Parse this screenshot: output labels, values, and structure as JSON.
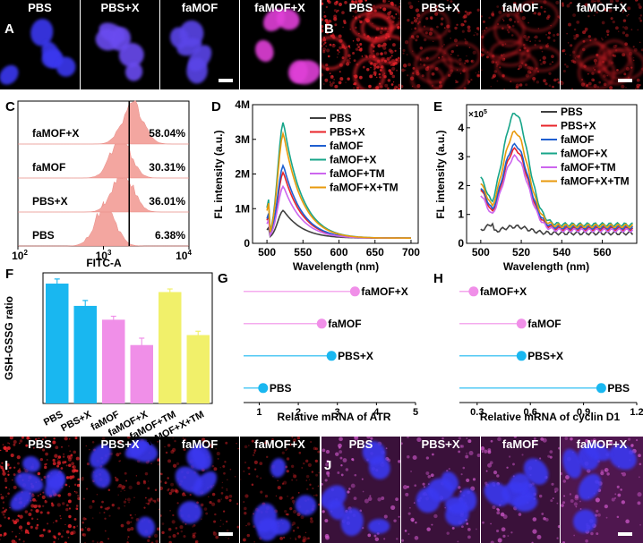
{
  "colors": {
    "nucleus": "#3b38f0",
    "red_stain": "#e8242a",
    "magenta": "#e14fd6",
    "cyan": "#19a5d8",
    "pink": "#f08fe8",
    "yellow": "#f1f06a",
    "hist_fill": "#f3a6a0"
  },
  "panels": {
    "A": {
      "letter": "A",
      "labels": [
        "PBS",
        "PBS+X",
        "faMOF",
        "faMOF+X"
      ]
    },
    "B": {
      "letter": "B",
      "labels": [
        "PBS",
        "PBS+X",
        "faMOF",
        "faMOF+X"
      ]
    },
    "C": {
      "letter": "C"
    },
    "D": {
      "letter": "D"
    },
    "E": {
      "letter": "E"
    },
    "F": {
      "letter": "F"
    },
    "G": {
      "letter": "G"
    },
    "H": {
      "letter": "H"
    },
    "I": {
      "letter": "I",
      "labels": [
        "PBS",
        "PBS+X",
        "faMOF",
        "faMOF+X"
      ]
    },
    "J": {
      "letter": "J",
      "labels": [
        "PBS",
        "PBS+X",
        "faMOF",
        "faMOF+X"
      ]
    }
  },
  "chart_data": [
    {
      "id": "C",
      "type": "histogram",
      "xlabel": "FITC-A",
      "x_scale": "log",
      "xlim": [
        100,
        10000
      ],
      "xticks": [
        "10",
        "10",
        "10"
      ],
      "xtick_exps": [
        "2",
        "3",
        "4"
      ],
      "gate": 2000,
      "series": [
        {
          "name": "faMOF+X",
          "percent": "58.04%",
          "peak": 2200
        },
        {
          "name": "faMOF",
          "percent": "30.31%",
          "peak": 1600
        },
        {
          "name": "PBS+X",
          "percent": "36.01%",
          "peak": 1700
        },
        {
          "name": "PBS",
          "percent": "6.38%",
          "peak": 1050
        }
      ]
    },
    {
      "id": "D",
      "type": "line",
      "xlabel": "Wavelength (nm)",
      "ylabel": "FL intensity (a.u.)",
      "xlim": [
        480,
        710
      ],
      "ylim": [
        0,
        4000000
      ],
      "xticks": [
        500,
        550,
        600,
        650,
        700
      ],
      "yticks": [
        0,
        1000000,
        2000000,
        3000000,
        4000000
      ],
      "ytick_labels": [
        "0",
        "1M",
        "2M",
        "3M",
        "4M"
      ],
      "peak_x": 523,
      "series": [
        {
          "name": "PBS",
          "color": "#404040",
          "peak": 950000
        },
        {
          "name": "PBS+X",
          "color": "#e8242a",
          "peak": 2050000
        },
        {
          "name": "faMOF",
          "color": "#1f5fd0",
          "peak": 2250000
        },
        {
          "name": "faMOF+X",
          "color": "#17a589",
          "peak": 3500000
        },
        {
          "name": "faMOF+TM",
          "color": "#cc66ee",
          "peak": 1650000
        },
        {
          "name": "faMOF+X+TM",
          "color": "#e89a0c",
          "peak": 3180000
        }
      ]
    },
    {
      "id": "E",
      "type": "line",
      "xlabel": "Wavelength (nm)",
      "ylabel": "FL intensity (a.u.)",
      "multiplier": "×10",
      "multiplier_exp": "5",
      "xlim": [
        493,
        577
      ],
      "ylim": [
        0,
        4.8
      ],
      "xticks": [
        500,
        520,
        540,
        560
      ],
      "yticks": [
        0,
        1,
        2,
        3,
        4
      ],
      "series": [
        {
          "name": "PBS",
          "color": "#404040",
          "peak": 0.58,
          "start": 0.45,
          "end": 0.35
        },
        {
          "name": "PBS+X",
          "color": "#e8242a",
          "peak": 3.25,
          "start": 1.9,
          "end": 0.5
        },
        {
          "name": "faMOF",
          "color": "#1f5fd0",
          "peak": 3.4,
          "start": 1.95,
          "end": 0.55
        },
        {
          "name": "faMOF+X",
          "color": "#17a589",
          "peak": 4.5,
          "start": 2.3,
          "end": 0.65
        },
        {
          "name": "faMOF+TM",
          "color": "#cc66ee",
          "peak": 3.0,
          "start": 1.7,
          "end": 0.45
        },
        {
          "name": "faMOF+X+TM",
          "color": "#e89a0c",
          "peak": 3.85,
          "start": 2.1,
          "end": 0.6
        }
      ]
    },
    {
      "id": "F",
      "type": "bar",
      "ylabel": "GSH-GSSG ratio",
      "ylim": [
        0,
        17
      ],
      "categories": [
        "PBS",
        "PBS+X",
        "faMOF",
        "faMOF+X",
        "faMOF+TM",
        "faMOF+X+TM"
      ],
      "values": [
        15.6,
        12.7,
        10.9,
        7.6,
        14.5,
        8.9
      ],
      "errors": [
        0.6,
        0.7,
        0.45,
        0.9,
        0.4,
        0.5
      ],
      "bar_colors": [
        "#19b7f0",
        "#19b7f0",
        "#f08fe8",
        "#f08fe8",
        "#f1f06a",
        "#f1f06a"
      ]
    },
    {
      "id": "G",
      "type": "lollipop",
      "xlabel": "Relative mRNA of ATR",
      "xlim": [
        0.6,
        5
      ],
      "xticks": [
        1,
        2,
        3,
        4,
        5
      ],
      "categories": [
        "faMOF+X",
        "faMOF",
        "PBS+X",
        "PBS"
      ],
      "values": [
        3.45,
        2.6,
        2.85,
        1.1
      ],
      "point_colors": [
        "#f08fe8",
        "#f08fe8",
        "#19b7f0",
        "#19b7f0"
      ]
    },
    {
      "id": "H",
      "type": "lollipop",
      "xlabel": "Relative mRNA of cyclin D1",
      "xlim": [
        0.2,
        1.2
      ],
      "xticks": [
        0.3,
        0.6,
        0.9,
        1.2
      ],
      "categories": [
        "faMOF+X",
        "faMOF",
        "PBS+X",
        "PBS"
      ],
      "values": [
        0.28,
        0.55,
        0.55,
        1.0
      ],
      "point_colors": [
        "#f08fe8",
        "#f08fe8",
        "#19b7f0",
        "#19b7f0"
      ]
    }
  ]
}
